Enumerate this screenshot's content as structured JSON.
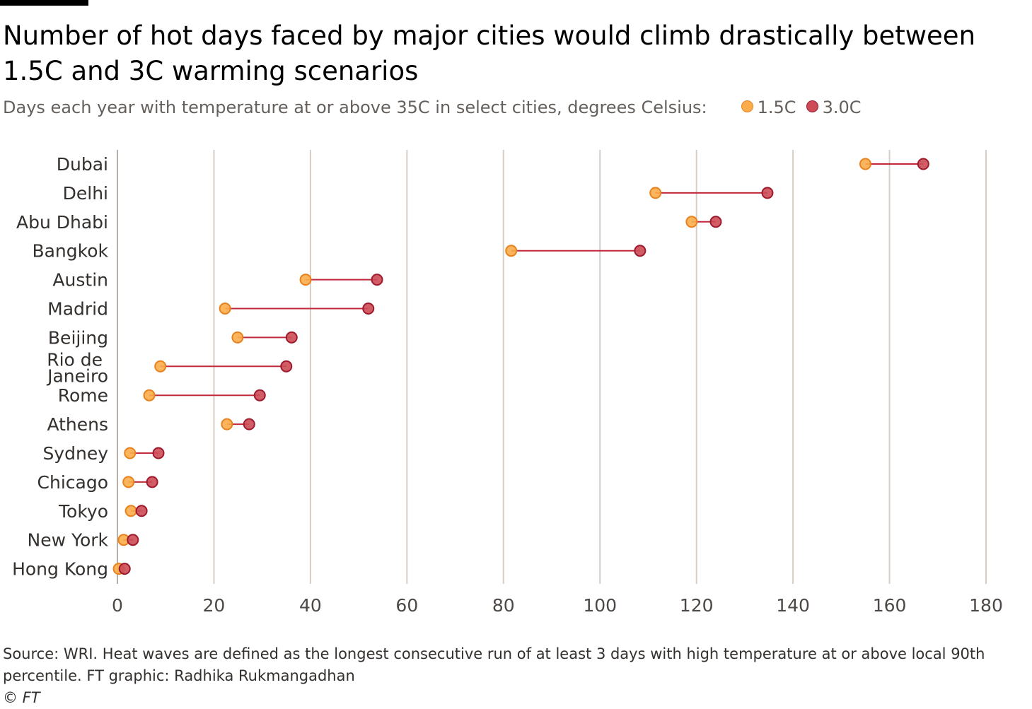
{
  "chart_data": {
    "type": "dumbbell",
    "title": "Number of hot days faced by major cities would climb drastically between 1.5C and 3C warming scenarios",
    "subtitle": "Days each year with temperature at or above 35C in select cities, degrees Celsius:",
    "categories": [
      "Dubai",
      "Delhi",
      "Abu Dhabi",
      "Bangkok",
      "Austin",
      "Madrid",
      "Beijing",
      "Rio de Janeiro",
      "Rome",
      "Athens",
      "Sydney",
      "Chicago",
      "Tokyo",
      "New York",
      "Hong Kong"
    ],
    "series": [
      {
        "name": "1.5C",
        "color": "#fbad4b",
        "values": [
          155,
          111.5,
          119,
          81.6,
          39,
          22.3,
          24.9,
          8.9,
          6.6,
          22.7,
          2.6,
          2.3,
          2.8,
          1.3,
          0.3
        ]
      },
      {
        "name": "3.0C",
        "color": "#cc4b57",
        "values": [
          167,
          134.7,
          124,
          108.3,
          53.8,
          52,
          36.1,
          35,
          29.5,
          27.3,
          8.5,
          7.2,
          5,
          3.2,
          1.5
        ]
      }
    ],
    "line_color": "#c1283a",
    "xlim": [
      0,
      180
    ],
    "xticks": [
      0,
      20,
      40,
      60,
      80,
      100,
      120,
      140,
      160,
      180
    ],
    "grid": true,
    "source": "Source: WRI. Heat waves are defined as the longest consecutive run of at least 3 days with high temperature at or above local 90th percentile. FT graphic: Radhika Rukmangadhan",
    "copyright": "© FT"
  }
}
